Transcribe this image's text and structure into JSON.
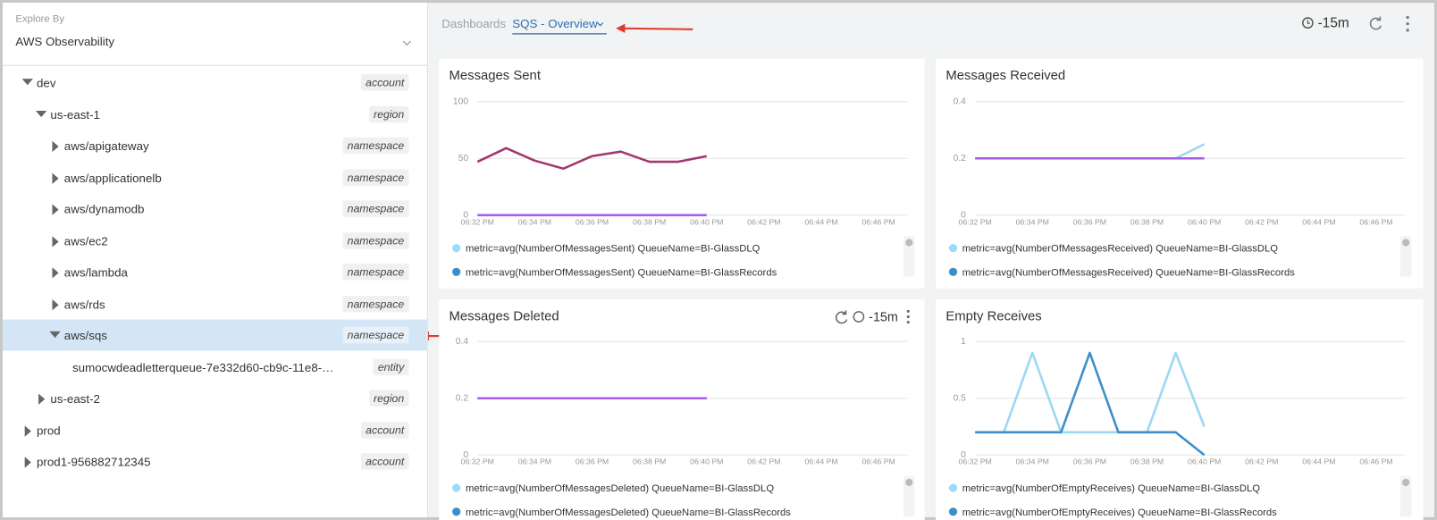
{
  "sidebar": {
    "explore_by_label": "Explore By",
    "explore_by_value": "AWS Observability",
    "tree": [
      {
        "label": "dev",
        "tag": "account",
        "expanded": true,
        "children": [
          {
            "label": "us-east-1",
            "tag": "region",
            "expanded": true,
            "children": [
              {
                "label": "aws/apigateway",
                "tag": "namespace",
                "expanded": false
              },
              {
                "label": "aws/applicationelb",
                "tag": "namespace",
                "expanded": false
              },
              {
                "label": "aws/dynamodb",
                "tag": "namespace",
                "expanded": false
              },
              {
                "label": "aws/ec2",
                "tag": "namespace",
                "expanded": false
              },
              {
                "label": "aws/lambda",
                "tag": "namespace",
                "expanded": false
              },
              {
                "label": "aws/rds",
                "tag": "namespace",
                "expanded": false
              },
              {
                "label": "aws/sqs",
                "tag": "namespace",
                "expanded": true,
                "selected": true,
                "children": [
                  {
                    "label": "sumocwdeadletterqueue-7e332d60-cb9c-11e8-…",
                    "tag": "entity"
                  }
                ]
              }
            ]
          },
          {
            "label": "us-east-2",
            "tag": "region",
            "expanded": false
          }
        ]
      },
      {
        "label": "prod",
        "tag": "account",
        "expanded": false
      },
      {
        "label": "prod1-956882712345",
        "tag": "account",
        "expanded": false
      }
    ]
  },
  "header": {
    "breadcrumb": "Dashboards",
    "dashboard": "SQS - Overview",
    "time_range": "-15m"
  },
  "chart_data": [
    {
      "type": "line",
      "title": "Messages Sent",
      "categories": [
        "06:32 PM",
        null,
        "06:34 PM",
        null,
        "06:36 PM",
        null,
        "06:38 PM",
        null,
        "06:40 PM",
        null,
        "06:42 PM",
        null,
        "06:44 PM",
        null,
        "06:46 PM"
      ],
      "ylim": [
        0,
        100
      ],
      "yticks": [
        0,
        50,
        100
      ],
      "grid": true,
      "series": [
        {
          "name": "metric=avg(NumberOfMessagesSent) QueueName=BI-GlassDLQ",
          "color": "#9bdcf6",
          "line_color": "#a55ce8",
          "values": [
            0,
            0,
            0,
            0,
            0,
            0,
            0,
            0,
            0,
            null,
            null,
            null,
            null,
            null,
            null
          ]
        },
        {
          "name": "metric=avg(NumberOfMessagesSent) QueueName=BI-GlassRecords",
          "color": "#3b8fc6",
          "line_color": "#a3386e",
          "values": [
            47,
            59,
            48,
            41,
            52,
            56,
            47,
            47,
            52,
            null,
            null,
            null,
            null,
            null,
            null
          ]
        }
      ]
    },
    {
      "type": "line",
      "title": "Messages Received",
      "categories": [
        "06:32 PM",
        null,
        "06:34 PM",
        null,
        "06:36 PM",
        null,
        "06:38 PM",
        null,
        "06:40 PM",
        null,
        "06:42 PM",
        null,
        "06:44 PM",
        null,
        "06:46 PM"
      ],
      "ylim": [
        0,
        0.4
      ],
      "yticks": [
        0,
        0.2,
        0.4
      ],
      "grid": true,
      "series": [
        {
          "name": "metric=avg(NumberOfMessagesReceived) QueueName=BI-GlassDLQ",
          "color": "#9bdcf6",
          "line_color": "#9bd8f2",
          "values": [
            null,
            null,
            null,
            null,
            null,
            null,
            null,
            0.2,
            0.25,
            null,
            null,
            null,
            null,
            null,
            null
          ]
        },
        {
          "name": "metric=avg(NumberOfMessagesReceived) QueueName=BI-GlassRecords",
          "color": "#3b8fc6",
          "line_color": "#a55ce8",
          "values": [
            0.2,
            0.2,
            0.2,
            0.2,
            0.2,
            0.2,
            0.2,
            0.2,
            0.2,
            null,
            null,
            null,
            null,
            null,
            null
          ]
        }
      ]
    },
    {
      "type": "line",
      "title": "Messages Deleted",
      "toolbar_time": "-15m",
      "categories": [
        "06:32 PM",
        null,
        "06:34 PM",
        null,
        "06:36 PM",
        null,
        "06:38 PM",
        null,
        "06:40 PM",
        null,
        "06:42 PM",
        null,
        "06:44 PM",
        null,
        "06:46 PM"
      ],
      "ylim": [
        0,
        0.4
      ],
      "yticks": [
        0,
        0.2,
        0.4
      ],
      "grid": true,
      "series": [
        {
          "name": "metric=avg(NumberOfMessagesDeleted) QueueName=BI-GlassDLQ",
          "color": "#9bdcf6",
          "line_color": "#a55ce8",
          "values": [
            0.2,
            0.2,
            0.2,
            0.2,
            0.2,
            0.2,
            0.2,
            0.2,
            0.2,
            null,
            null,
            null,
            null,
            null,
            null
          ]
        },
        {
          "name": "metric=avg(NumberOfMessagesDeleted) QueueName=BI-GlassRecords",
          "color": "#3b8fc6",
          "line_color": "#a55ce8",
          "values": [
            0.2,
            0.2,
            0.2,
            0.2,
            0.2,
            0.2,
            0.2,
            0.2,
            0.2,
            null,
            null,
            null,
            null,
            null,
            null
          ]
        }
      ]
    },
    {
      "type": "line",
      "title": "Empty Receives",
      "categories": [
        "06:32 PM",
        null,
        "06:34 PM",
        null,
        "06:36 PM",
        null,
        "06:38 PM",
        null,
        "06:40 PM",
        null,
        "06:42 PM",
        null,
        "06:44 PM",
        null,
        "06:46 PM"
      ],
      "ylim": [
        0,
        1
      ],
      "yticks": [
        0,
        0.5,
        1
      ],
      "grid": true,
      "series": [
        {
          "name": "metric=avg(NumberOfEmptyReceives) QueueName=BI-GlassDLQ",
          "color": "#9bdcf6",
          "line_color": "#9bd8f2",
          "values": [
            0.2,
            0.2,
            0.9,
            0.2,
            0.2,
            0.2,
            0.2,
            0.9,
            0.25,
            null,
            null,
            null,
            null,
            null,
            null
          ]
        },
        {
          "name": "metric=avg(NumberOfEmptyReceives) QueueName=BI-GlassRecords",
          "color": "#3b8fc6",
          "line_color": "#3d8ec9",
          "values": [
            0.2,
            0.2,
            0.2,
            0.2,
            0.9,
            0.2,
            0.2,
            0.2,
            0,
            null,
            null,
            null,
            null,
            null,
            null
          ]
        }
      ]
    }
  ]
}
